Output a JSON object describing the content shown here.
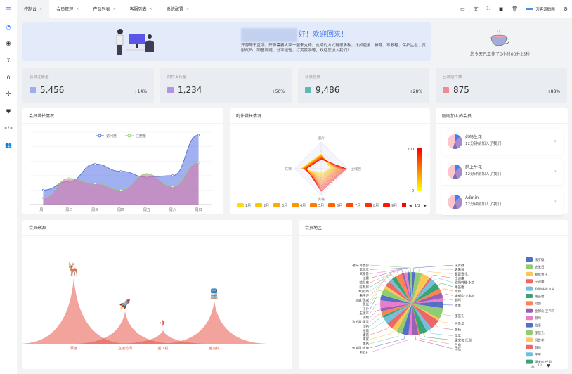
{
  "tabs": [
    {
      "label": "控制台",
      "active": true
    },
    {
      "label": "会员管理"
    },
    {
      "label": "产品列表"
    },
    {
      "label": "客服列表"
    },
    {
      "label": "系统配置"
    }
  ],
  "tab_close": "×",
  "toolbar": {
    "site_name": "刀客源码网",
    "icons": [
      "monitor-icon",
      "translate-icon",
      "fullscreen-icon",
      "terminal-icon",
      "trash-icon",
      "settings-icon"
    ]
  },
  "sidebar": {
    "icons": [
      "menu-fold-icon",
      "dashboard-icon",
      "user-icon",
      "upload-icon",
      "headset-icon",
      "cluster-icon",
      "shield-icon",
      "code-icon",
      "users-icon"
    ]
  },
  "welcome": {
    "title": "好！欢迎回来！",
    "desc": "开源等于互助；开源需要大家一起来支持，支持的方式有很多种，比如使用、推荐、写教程、保护生态、贡献代码、回答问题、分享经验、打赏赞助等；欢迎您加入我们！"
  },
  "worktime": "您今天已工作了0小时00分25秒",
  "stats": [
    {
      "label": "会员注册量",
      "value": "5,456",
      "change": "+14%",
      "color": "#8b9cf0"
    },
    {
      "label": "附件上传量",
      "value": "1,234",
      "change": "+50%",
      "color": "#a77ce8"
    },
    {
      "label": "会员总数",
      "value": "9,486",
      "change": "+28%",
      "color": "#3fa7a6"
    },
    {
      "label": "已装插件数",
      "value": "875",
      "change": "+88%",
      "color": "#f0747c"
    }
  ],
  "member_growth": {
    "title": "会员增长情况"
  },
  "attachment_growth": {
    "title": "附件增长情况"
  },
  "new_members": {
    "title": "刚刚加入的会员",
    "items": [
      {
        "name": "妙码生花",
        "time": "12分钟前加入了我们"
      },
      {
        "name": "码上生花",
        "time": "12分钟前加入了我们"
      },
      {
        "name": "Admin",
        "time": "12分钟前加入了我们"
      }
    ],
    "chevron": "›"
  },
  "member_source": {
    "title": "会员来源"
  },
  "member_region": {
    "title": "会员地区"
  },
  "chart_data": [
    {
      "type": "area",
      "title": "会员增长情况",
      "categories": [
        "周一",
        "周二",
        "周三",
        "周四",
        "周五",
        "周六",
        "周日"
      ],
      "series": [
        {
          "name": "访问量",
          "values": [
            100,
            160,
            280,
            230,
            190,
            200,
            480
          ],
          "color": "#5470c6"
        },
        {
          "name": "注册量",
          "values": [
            45,
            180,
            145,
            100,
            210,
            125,
            290
          ],
          "color": "#91cc75"
        }
      ],
      "ylim": [
        0,
        500
      ],
      "grid": true,
      "legend": "top"
    },
    {
      "type": "radar",
      "title": "附件增长情况",
      "indicators": [
        "图片",
        "压缩包",
        "表格",
        "文档"
      ],
      "legend": [
        "1月",
        "2月",
        "3月",
        "4月",
        "5月",
        "6月",
        "7月",
        "8月",
        "9月"
      ],
      "legend_page": "1/2",
      "visual_map": {
        "min": 0,
        "max": 200,
        "colors": [
          "#ffff00",
          "#ff0000"
        ]
      }
    },
    {
      "type": "pictorialBar",
      "title": "会员来源",
      "categories": [
        "百度",
        "直接访问",
        "坐飞机",
        "坐高铁"
      ],
      "values": [
        123,
        60,
        25,
        80
      ],
      "color": "#e8584a",
      "icons": [
        "deer-icon",
        "rocket-icon",
        "plane-icon",
        "train-icon"
      ]
    },
    {
      "type": "pie",
      "title": "会员地区",
      "categories": [
        "法罗徽",
        "史朱日",
        "葛彭曹·孔",
        "宁迪廉",
        "欧阳韩楼·水高",
        "路笛唐",
        "时郑",
        "金郝俞·卫韦何",
        "酆时",
        "孜奉",
        "邵苗孔",
        "柯鲁华",
        "魏杨",
        "平平",
        "康宋和·任周",
        "吕俞",
        "成伍",
        "尹云杜",
        "伍戚周·庞施",
        "廉先",
        "韦富",
        "康嘉",
        "柏蓬",
        "汪韩",
        "孜范雷·唐吴",
        "李魏",
        "王谢严",
        "乐孙",
        "费班",
        "赵戚·禹戚",
        "朱干许",
        "奉贺·陶",
        "陈魏郎",
        "喻昌史",
        "汪窦",
        "贺潘鲁",
        "常元彦",
        "褚安·蒋鲁薛"
      ],
      "values": [
        3,
        6,
        8,
        2,
        5,
        6,
        4,
        5,
        3,
        6,
        10,
        2,
        9,
        5,
        7,
        1,
        6,
        3,
        6,
        5,
        5,
        6,
        6,
        2,
        4,
        3,
        7,
        5,
        6,
        3,
        5,
        3,
        4,
        6,
        2,
        3,
        2,
        2
      ],
      "legend_page": "1/4"
    }
  ]
}
